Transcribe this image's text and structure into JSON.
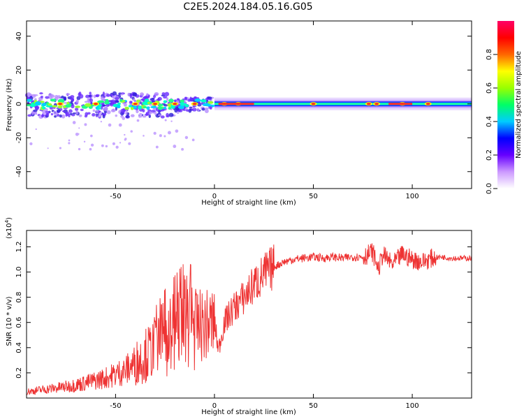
{
  "figure_title": "C2E5.2024.184.05.16.G05",
  "colorbar": {
    "label": "Normalized spectral amplitude",
    "ticks": [
      "0.0",
      "0.2",
      "0.4",
      "0.6",
      "0.8"
    ],
    "tick_values": [
      0.0,
      0.2,
      0.4,
      0.6,
      0.8
    ],
    "colors": [
      "#ffffff",
      "#cc99ff",
      "#6600ff",
      "#0000ff",
      "#00ccff",
      "#00ff66",
      "#99ff00",
      "#ffff00",
      "#ff6600",
      "#ff0000",
      "#ff0066"
    ]
  },
  "chart_data": [
    {
      "type": "heatmap",
      "title": "",
      "xlabel": "Height of straight line (km)",
      "ylabel": "Frequency (Hz)",
      "xlim": [
        -95,
        130
      ],
      "ylim": [
        -50,
        49
      ],
      "xticks": [
        "-50",
        "0",
        "50",
        "100"
      ],
      "xtick_values": [
        -50,
        0,
        50,
        100
      ],
      "yticks": [
        "40",
        "20",
        "0",
        "-20",
        "-40"
      ],
      "ytick_values": [
        40,
        20,
        0,
        -20,
        -40
      ],
      "value_range": [
        0,
        1
      ],
      "band_center_hz": 0,
      "bright_spots_x_km": [
        -78,
        -60,
        -40,
        -30,
        -20,
        -10,
        5,
        12,
        50,
        78,
        82,
        95,
        108
      ]
    },
    {
      "type": "line",
      "title": "",
      "xlabel": "Height of straight line (km)",
      "ylabel": "SNR (10 * v/v)",
      "y_multiplier_label": "(x10",
      "y_multiplier_exp": "4",
      "xlim": [
        -95,
        130
      ],
      "ylim": [
        0,
        13300
      ],
      "xticks": [
        "-50",
        "0",
        "50",
        "100"
      ],
      "xtick_values": [
        -50,
        0,
        50,
        100
      ],
      "yticks": [
        "0.2",
        "0.4",
        "0.6",
        "0.8",
        "1.0",
        "1.2"
      ],
      "ytick_values": [
        2000,
        4000,
        6000,
        8000,
        10000,
        12000
      ],
      "line_color": "#ee3333",
      "series": [
        {
          "name": "",
          "x": [
            -95,
            -85,
            -75,
            -65,
            -55,
            -45,
            -38,
            -30,
            -25,
            -20,
            -15,
            -10,
            -5,
            0,
            2,
            5,
            10,
            15,
            20,
            25,
            30,
            35,
            40,
            45,
            50,
            55,
            60,
            65,
            70,
            75,
            80,
            83,
            85,
            90,
            95,
            100,
            105,
            110,
            115,
            120,
            125,
            130
          ],
          "y": [
            500,
            700,
            900,
            1200,
            1600,
            2200,
            3000,
            4000,
            4800,
            5400,
            6000,
            5800,
            5700,
            6000,
            3800,
            6000,
            7200,
            8000,
            9000,
            9800,
            10400,
            10800,
            11000,
            11100,
            11200,
            11100,
            11200,
            11100,
            11200,
            11200,
            11600,
            10200,
            11400,
            10600,
            11400,
            11000,
            10800,
            11100,
            11200,
            11100,
            11100,
            11100
          ]
        }
      ]
    }
  ]
}
